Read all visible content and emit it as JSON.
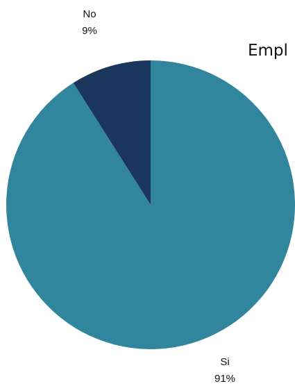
{
  "chart_data": {
    "type": "pie",
    "title": "Empl",
    "slices": [
      {
        "label": "No",
        "value": 9,
        "value_label": "9%",
        "color": "#1b365d"
      },
      {
        "label": "Si",
        "value": 91,
        "value_label": "91%",
        "color": "#31859c"
      }
    ],
    "start_angle": "12 o'clock",
    "direction": "counter-clockwise",
    "legend": "none"
  }
}
